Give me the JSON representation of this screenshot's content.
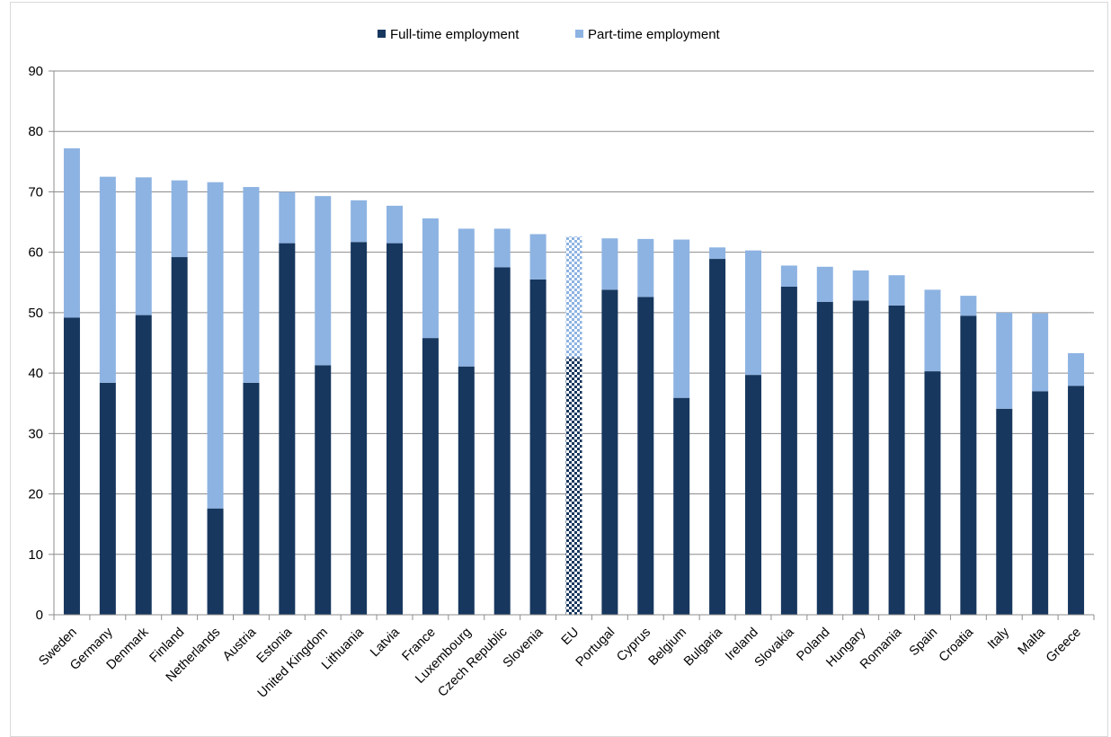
{
  "chart_data": {
    "type": "bar",
    "stacked": true,
    "categories": [
      "Sweden",
      "Germany",
      "Denmark",
      "Finland",
      "Netherlands",
      "Austria",
      "Estonia",
      "United Kingdom",
      "Lithuania",
      "Latvia",
      "France",
      "Luxembourg",
      "Czech Republic",
      "Slovenia",
      "EU",
      "Portugal",
      "Cyprus",
      "Belgium",
      "Bulgaria",
      "Ireland",
      "Slovakia",
      "Poland",
      "Hungary",
      "Romania",
      "Spain",
      "Croatia",
      "Italy",
      "Malta",
      "Greece"
    ],
    "series": [
      {
        "name": "Full-time employment",
        "color": "#17375e",
        "values": [
          49.2,
          38.4,
          49.6,
          59.2,
          17.6,
          38.4,
          61.5,
          41.3,
          61.7,
          61.5,
          45.8,
          41.1,
          57.5,
          55.5,
          42.6,
          53.8,
          52.6,
          35.9,
          58.9,
          39.7,
          54.3,
          51.8,
          52.0,
          51.2,
          40.3,
          49.5,
          34.1,
          37.0,
          37.9
        ]
      },
      {
        "name": "Part-time employment",
        "color": "#8db3e2",
        "values": [
          28.0,
          34.1,
          22.8,
          12.7,
          54.0,
          32.4,
          8.5,
          28.0,
          6.9,
          6.2,
          19.8,
          22.8,
          6.4,
          7.5,
          20.0,
          8.5,
          9.6,
          26.2,
          1.9,
          20.6,
          3.5,
          5.8,
          5.0,
          5.0,
          13.5,
          3.3,
          15.9,
          12.9,
          5.4
        ]
      }
    ],
    "highlight": {
      "category": "EU",
      "pattern": "checkered"
    },
    "ylim": [
      0,
      90
    ],
    "yticks": [
      0,
      10,
      20,
      30,
      40,
      50,
      60,
      70,
      80,
      90
    ],
    "grid": true,
    "legend_position": "top-center",
    "title": "",
    "xlabel": "",
    "ylabel": ""
  }
}
